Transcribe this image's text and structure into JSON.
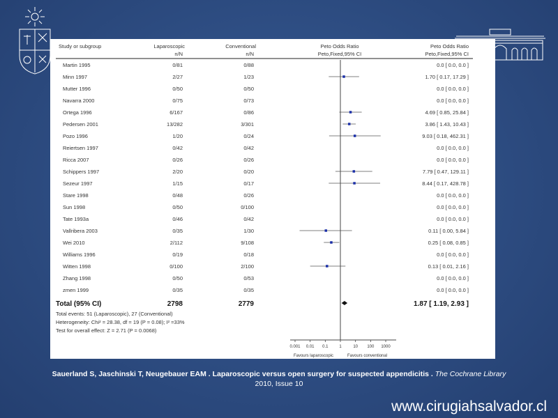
{
  "chart_data": {
    "type": "forest",
    "headers": {
      "study": "Study or subgroup",
      "group1": "Laparoscopic",
      "group2": "Conventional",
      "stat": "Peto Odds Ratio",
      "n_label": "n/N",
      "method": "Peto,Fixed,95% CI"
    },
    "x_scale": "log",
    "xlim": [
      0.001,
      1000
    ],
    "ticks": [
      {
        "label": "0.001",
        "value": 0.001
      },
      {
        "label": "0.01",
        "value": 0.01
      },
      {
        "label": "0.1",
        "value": 0.1
      },
      {
        "label": "1",
        "value": 1
      },
      {
        "label": "10",
        "value": 10
      },
      {
        "label": "100",
        "value": 100
      },
      {
        "label": "1000",
        "value": 1000
      }
    ],
    "favours_left": "Favours laparoscopic",
    "favours_right": "Favours conventional",
    "studies": [
      {
        "name": "Martin 1995",
        "g1": "0/81",
        "g2": "0/88",
        "ci_text": "0.0 [ 0.0, 0.0 ]",
        "or": null,
        "lo": null,
        "hi": null
      },
      {
        "name": "Minn 1997",
        "g1": "2/27",
        "g2": "1/23",
        "ci_text": "1.70 [ 0.17, 17.29 ]",
        "or": 1.7,
        "lo": 0.17,
        "hi": 17.29
      },
      {
        "name": "Mutter 1996",
        "g1": "0/50",
        "g2": "0/50",
        "ci_text": "0.0 [ 0.0, 0.0 ]",
        "or": null,
        "lo": null,
        "hi": null
      },
      {
        "name": "Navarra 2000",
        "g1": "0/75",
        "g2": "0/73",
        "ci_text": "0.0 [ 0.0, 0.0 ]",
        "or": null,
        "lo": null,
        "hi": null
      },
      {
        "name": "Ortega 1996",
        "g1": "6/167",
        "g2": "0/86",
        "ci_text": "4.69 [ 0.85, 25.84 ]",
        "or": 4.69,
        "lo": 0.85,
        "hi": 25.84
      },
      {
        "name": "Pedersen 2001",
        "g1": "13/282",
        "g2": "3/301",
        "ci_text": "3.86 [ 1.43, 10.43 ]",
        "or": 3.86,
        "lo": 1.43,
        "hi": 10.43
      },
      {
        "name": "Pozo 1996",
        "g1": "1/20",
        "g2": "0/24",
        "ci_text": "9.03 [ 0.18, 462.31 ]",
        "or": 9.03,
        "lo": 0.18,
        "hi": 462.31
      },
      {
        "name": "Reiertsen 1997",
        "g1": "0/42",
        "g2": "0/42",
        "ci_text": "0.0 [ 0.0, 0.0 ]",
        "or": null,
        "lo": null,
        "hi": null
      },
      {
        "name": "Ricca 2007",
        "g1": "0/26",
        "g2": "0/26",
        "ci_text": "0.0 [ 0.0, 0.0 ]",
        "or": null,
        "lo": null,
        "hi": null
      },
      {
        "name": "Schippers 1997",
        "g1": "2/20",
        "g2": "0/20",
        "ci_text": "7.79 [ 0.47, 129.11 ]",
        "or": 7.79,
        "lo": 0.47,
        "hi": 129.11
      },
      {
        "name": "Sezeur 1997",
        "g1": "1/15",
        "g2": "0/17",
        "ci_text": "8.44 [ 0.17, 428.78 ]",
        "or": 8.44,
        "lo": 0.17,
        "hi": 428.78
      },
      {
        "name": "Stare 1998",
        "g1": "0/48",
        "g2": "0/26",
        "ci_text": "0.0 [ 0.0, 0.0 ]",
        "or": null,
        "lo": null,
        "hi": null
      },
      {
        "name": "Sun 1998",
        "g1": "0/50",
        "g2": "0/100",
        "ci_text": "0.0 [ 0.0, 0.0 ]",
        "or": null,
        "lo": null,
        "hi": null
      },
      {
        "name": "Tate 1993a",
        "g1": "0/46",
        "g2": "0/42",
        "ci_text": "0.0 [ 0.0, 0.0 ]",
        "or": null,
        "lo": null,
        "hi": null
      },
      {
        "name": "Vallribera 2003",
        "g1": "0/35",
        "g2": "1/30",
        "ci_text": "0.11 [ 0.00, 5.84 ]",
        "or": 0.11,
        "lo": 0.002,
        "hi": 5.84
      },
      {
        "name": "Wei 2010",
        "g1": "2/112",
        "g2": "9/108",
        "ci_text": "0.25 [ 0.08, 0.85 ]",
        "or": 0.25,
        "lo": 0.08,
        "hi": 0.85
      },
      {
        "name": "Williams 1996",
        "g1": "0/19",
        "g2": "0/18",
        "ci_text": "0.0 [ 0.0, 0.0 ]",
        "or": null,
        "lo": null,
        "hi": null
      },
      {
        "name": "Witten 1998",
        "g1": "0/100",
        "g2": "2/100",
        "ci_text": "0.13 [ 0.01, 2.16 ]",
        "or": 0.13,
        "lo": 0.01,
        "hi": 2.16
      },
      {
        "name": "Zhang 1998",
        "g1": "0/50",
        "g2": "0/53",
        "ci_text": "0.0 [ 0.0, 0.0 ]",
        "or": null,
        "lo": null,
        "hi": null
      },
      {
        "name": "zmen 1999",
        "g1": "0/35",
        "g2": "0/35",
        "ci_text": "0.0 [ 0.0, 0.0 ]",
        "or": null,
        "lo": null,
        "hi": null
      }
    ],
    "total": {
      "name": "Total (95% CI)",
      "g1": "2798",
      "g2": "2779",
      "ci_text": "1.87 [ 1.19, 2.93 ]",
      "or": 1.87,
      "lo": 1.19,
      "hi": 2.93
    },
    "footnotes": [
      "Total events: 51 (Laparoscopic), 27 (Conventional)",
      "Heterogeneity: Chi² = 28.38, df = 19 (P = 0.08); I² =33%",
      "Test for overall effect: Z = 2.71 (P = 0.0068)"
    ],
    "colors": {
      "marker": "#1a2fa8",
      "line": "#555555"
    }
  },
  "citation": {
    "authors": "Sauerland S, Jaschinski T, Neugebauer EAM . Laparoscopic versus open surgery for suspected appendicitis .",
    "journal": "The Cochrane Library",
    "issue": "2010, Issue 10"
  },
  "website": "www.cirugiahsalvador.cl",
  "theme": {
    "background": "#2f4f85",
    "text": "#ffffff"
  }
}
